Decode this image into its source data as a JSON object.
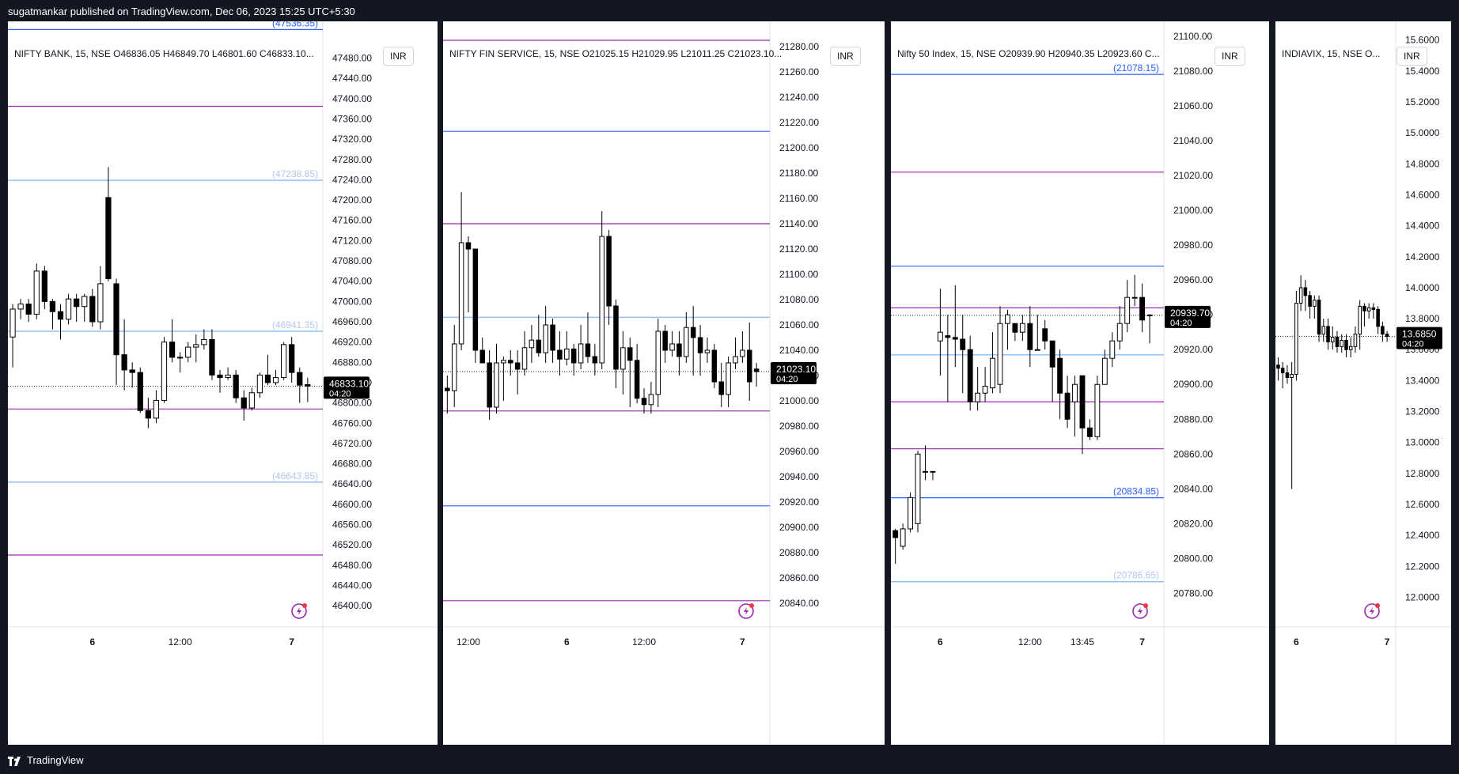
{
  "header": {
    "published": "sugatmankar published on TradingView.com, Dec 06, 2023 15:25 UTC+5:30"
  },
  "footer": {
    "brand": "TradingView"
  },
  "colors": {
    "blue_level": "#2962ff",
    "purple_level": "#9c27b0",
    "candle_up": "#ffffff",
    "candle_down": "#000000"
  },
  "chart_data": [
    {
      "type": "candlestick",
      "legend": "NIFTY BANK, 15, NSE  O46836.05  H46849.70  L46801.60  C46833.10...",
      "currency": "INR",
      "ylim": [
        46380,
        47540
      ],
      "yticks": [
        "46400.00",
        "46440.00",
        "46480.00",
        "46520.00",
        "46560.00",
        "46600.00",
        "46640.00",
        "46680.00",
        "46720.00",
        "46760.00",
        "46800.00",
        "46840.00",
        "46880.00",
        "46920.00",
        "46960.00",
        "47000.00",
        "47040.00",
        "47080.00",
        "47120.00",
        "47160.00",
        "47200.00",
        "47240.00",
        "47280.00",
        "47320.00",
        "47360.00",
        "47400.00",
        "47440.00",
        "47480.00"
      ],
      "xticks": [
        {
          "label": "6",
          "i": 10
        },
        {
          "label": "12:00",
          "i": 21
        },
        {
          "label": "7",
          "i": 35
        }
      ],
      "last_price": "46833.10",
      "countdown": "04:20",
      "levels": [
        {
          "price": 47536.35,
          "color": "blue",
          "label": "(47536.35)"
        },
        {
          "price": 47385,
          "color": "purple"
        },
        {
          "price": 47238.85,
          "color": "lightblue",
          "label": "(47238.85)"
        },
        {
          "price": 46941.35,
          "color": "lightblue",
          "label": "(46941.35)"
        },
        {
          "price": 46788,
          "color": "purple"
        },
        {
          "price": 46643.85,
          "color": "lightblue",
          "label": "(46643.85)"
        },
        {
          "price": 46500,
          "color": "purple"
        }
      ],
      "candles": [
        [
          46930,
          46985,
          46870,
          46995
        ],
        [
          46985,
          46995,
          46965,
          47005
        ],
        [
          46995,
          46975,
          46960,
          47005
        ],
        [
          46975,
          47060,
          46965,
          47075
        ],
        [
          47060,
          47000,
          46985,
          47070
        ],
        [
          47000,
          46980,
          46945,
          47005
        ],
        [
          46980,
          46965,
          46925,
          46995
        ],
        [
          46965,
          47005,
          46955,
          47015
        ],
        [
          47005,
          46990,
          46960,
          47015
        ],
        [
          46990,
          47010,
          46960,
          47015
        ],
        [
          47010,
          46960,
          46950,
          47025
        ],
        [
          46960,
          47035,
          46945,
          47070
        ],
        [
          47205,
          47045,
          47040,
          47265
        ],
        [
          47035,
          46895,
          46835,
          47045
        ],
        [
          46895,
          46865,
          46825,
          46965
        ],
        [
          46865,
          46860,
          46830,
          46880
        ],
        [
          46860,
          46785,
          46780,
          46870
        ],
        [
          46785,
          46770,
          46750,
          46810
        ],
        [
          46770,
          46805,
          46760,
          46825
        ],
        [
          46805,
          46920,
          46800,
          46930
        ],
        [
          46920,
          46890,
          46880,
          46965
        ],
        [
          46890,
          46890,
          46860,
          46900
        ],
        [
          46890,
          46910,
          46880,
          46920
        ],
        [
          46910,
          46915,
          46880,
          46935
        ],
        [
          46915,
          46925,
          46905,
          46945
        ],
        [
          46925,
          46855,
          46845,
          46945
        ],
        [
          46855,
          46850,
          46820,
          46865
        ],
        [
          46850,
          46855,
          46845,
          46870
        ],
        [
          46855,
          46810,
          46800,
          46865
        ],
        [
          46810,
          46790,
          46765,
          46825
        ],
        [
          46790,
          46820,
          46785,
          46830
        ],
        [
          46820,
          46855,
          46810,
          46860
        ],
        [
          46855,
          46840,
          46835,
          46895
        ],
        [
          46840,
          46850,
          46835,
          46865
        ],
        [
          46850,
          46915,
          46845,
          46920
        ],
        [
          46915,
          46860,
          46840,
          46930
        ],
        [
          46860,
          46835,
          46800,
          46870
        ],
        [
          46836.05,
          46833.1,
          46801.6,
          46849.7
        ]
      ]
    },
    {
      "type": "candlestick",
      "legend": "NIFTY FIN SERVICE, 15, NSE  O21025.15  H21029.95  L21011.25  C21023.10...",
      "currency": "INR",
      "ylim": [
        20830,
        21295
      ],
      "yticks": [
        "20840.00",
        "20860.00",
        "20880.00",
        "20900.00",
        "20920.00",
        "20940.00",
        "20960.00",
        "20980.00",
        "21000.00",
        "21020.00",
        "21040.00",
        "21060.00",
        "21080.00",
        "21100.00",
        "21120.00",
        "21140.00",
        "21160.00",
        "21180.00",
        "21200.00",
        "21220.00",
        "21240.00",
        "21260.00",
        "21280.00"
      ],
      "xticks": [
        {
          "label": "12:00",
          "i": 3
        },
        {
          "label": "6",
          "i": 17
        },
        {
          "label": "12:00",
          "i": 28
        },
        {
          "label": "7",
          "i": 42
        }
      ],
      "last_price": "21023.10",
      "countdown": "04:20",
      "levels": [
        {
          "price": 21285,
          "color": "purple"
        },
        {
          "price": 21213,
          "color": "blue"
        },
        {
          "price": 21140,
          "color": "purple"
        },
        {
          "price": 21066,
          "color": "lightblue"
        },
        {
          "price": 20992,
          "color": "purple"
        },
        {
          "price": 20917,
          "color": "blue"
        },
        {
          "price": 20842,
          "color": "purple"
        }
      ],
      "candles": [
        [
          21010,
          21008,
          20990,
          21020
        ],
        [
          21008,
          21045,
          20995,
          21060
        ],
        [
          21045,
          21125,
          21040,
          21165
        ],
        [
          21125,
          21120,
          21070,
          21130
        ],
        [
          21120,
          21040,
          21030,
          21120
        ],
        [
          21040,
          21030,
          21030,
          21050
        ],
        [
          21030,
          20995,
          20985,
          21040
        ],
        [
          20995,
          21030,
          20990,
          21045
        ],
        [
          21030,
          21032,
          21000,
          21035
        ],
        [
          21032,
          21030,
          21020,
          21040
        ],
        [
          21030,
          21025,
          21005,
          21040
        ],
        [
          21025,
          21042,
          21020,
          21055
        ],
        [
          21042,
          21048,
          21030,
          21060
        ],
        [
          21048,
          21038,
          21035,
          21068
        ],
        [
          21038,
          21060,
          21030,
          21075
        ],
        [
          21060,
          21040,
          21030,
          21065
        ],
        [
          21040,
          21033,
          21020,
          21055
        ],
        [
          21033,
          21041,
          21028,
          21055
        ],
        [
          21041,
          21030,
          21020,
          21045
        ],
        [
          21030,
          21045,
          21025,
          21060
        ],
        [
          21045,
          21035,
          21030,
          21070
        ],
        [
          21035,
          21030,
          21020,
          21045
        ],
        [
          21030,
          21130,
          21025,
          21150
        ],
        [
          21130,
          21075,
          21060,
          21135
        ],
        [
          21075,
          21025,
          21010,
          21080
        ],
        [
          21025,
          21042,
          21005,
          21055
        ],
        [
          21042,
          21032,
          20995,
          21050
        ],
        [
          21032,
          21002,
          20998,
          21045
        ],
        [
          21002,
          20997,
          20990,
          21010
        ],
        [
          20997,
          21005,
          20990,
          21015
        ],
        [
          21005,
          21055,
          20995,
          21065
        ],
        [
          21055,
          21040,
          21030,
          21060
        ],
        [
          21040,
          21045,
          21035,
          21055
        ],
        [
          21045,
          21035,
          21020,
          21055
        ],
        [
          21035,
          21058,
          21030,
          21070
        ],
        [
          21058,
          21050,
          21020,
          21075
        ],
        [
          21050,
          21038,
          21020,
          21060
        ],
        [
          21038,
          21040,
          21030,
          21050
        ],
        [
          21040,
          21015,
          21010,
          21045
        ],
        [
          21015,
          21005,
          20995,
          21030
        ],
        [
          21005,
          21030,
          20995,
          21035
        ],
        [
          21030,
          21035,
          21025,
          21050
        ],
        [
          21035,
          21040,
          21030,
          21055
        ],
        [
          21040,
          21015,
          21000,
          21062
        ],
        [
          21025.15,
          21023.1,
          21011.25,
          21029.95
        ]
      ]
    },
    {
      "type": "candlestick",
      "legend": "Nifty 50 Index, 15, NSE  O20939.90  H20940.35  L20923.60  C...",
      "currency": "INR",
      "ylim": [
        20767,
        21105
      ],
      "yticks": [
        "20780.00",
        "20800.00",
        "20820.00",
        "20840.00",
        "20860.00",
        "20880.00",
        "20900.00",
        "20920.00",
        "20940.00",
        "20960.00",
        "20980.00",
        "21000.00",
        "21020.00",
        "21040.00",
        "21060.00",
        "21080.00",
        "21100.00"
      ],
      "xticks": [
        {
          "label": "6",
          "i": 6
        },
        {
          "label": "12:00",
          "i": 18
        },
        {
          "label": "13:45",
          "i": 25
        },
        {
          "label": "7",
          "i": 33
        }
      ],
      "last_price": "20939.70",
      "countdown": "04:20",
      "levels": [
        {
          "price": 21078.15,
          "color": "blue",
          "label": "(21078.15)"
        },
        {
          "price": 21022,
          "color": "purple"
        },
        {
          "price": 20968,
          "color": "blue"
        },
        {
          "price": 20944,
          "color": "purple"
        },
        {
          "price": 20917,
          "color": "lightblue"
        },
        {
          "price": 20890,
          "color": "purple"
        },
        {
          "price": 20863,
          "color": "purple"
        },
        {
          "price": 20834.85,
          "color": "blue",
          "label": "(20834.85)"
        },
        {
          "price": 20786.65,
          "color": "lightblue",
          "label": "(20786.65)"
        }
      ],
      "candles": [
        [
          20816,
          20812,
          20797,
          20817
        ],
        [
          20807,
          20817,
          20805,
          20820
        ],
        [
          20817,
          20835,
          20815,
          20838
        ],
        [
          20820,
          20860,
          20815,
          20862
        ],
        [
          20850,
          20850,
          20845,
          20865
        ],
        [
          20850,
          20850,
          20845,
          20850
        ],
        [
          20925,
          20930,
          20905,
          20955
        ],
        [
          20928,
          20927,
          20890,
          20940
        ],
        [
          20927,
          20926,
          20910,
          20957
        ],
        [
          20926,
          20920,
          20895,
          20940
        ],
        [
          20920,
          20890,
          20885,
          20928
        ],
        [
          20890,
          20895,
          20885,
          20910
        ],
        [
          20895,
          20899,
          20890,
          20910
        ],
        [
          20898,
          20915,
          20895,
          20930
        ],
        [
          20900,
          20935,
          20895,
          20945
        ],
        [
          20935,
          20940,
          20920,
          20943
        ],
        [
          20935,
          20930,
          20925,
          20935
        ],
        [
          20930,
          20935,
          20925,
          20940
        ],
        [
          20935,
          20920,
          20910,
          20945
        ],
        [
          20920,
          20920,
          20920,
          20940
        ],
        [
          20932,
          20925,
          20920,
          20937
        ],
        [
          20925,
          20910,
          20890,
          20925
        ],
        [
          20915,
          20895,
          20880,
          20920
        ],
        [
          20895,
          20880,
          20875,
          20905
        ],
        [
          20890,
          20900,
          20870,
          20905
        ],
        [
          20905,
          20875,
          20860,
          20905
        ],
        [
          20875,
          20870,
          20868,
          20880
        ],
        [
          20870,
          20900,
          20868,
          20905
        ],
        [
          20900,
          20915,
          20900,
          20920
        ],
        [
          20915,
          20925,
          20910,
          20930
        ],
        [
          20925,
          20935,
          20920,
          20945
        ],
        [
          20935,
          20950,
          20930,
          20960
        ],
        [
          20950,
          20950,
          20945,
          20963
        ],
        [
          20950,
          20937,
          20930,
          20958
        ],
        [
          20939.9,
          20939.7,
          20923.6,
          20940.35
        ]
      ]
    },
    {
      "type": "candlestick",
      "legend": "INDIAVIX, 15, NSE  O...",
      "currency": "INR",
      "ylim": [
        11.88,
        15.68
      ],
      "yticks": [
        "12.0000",
        "12.2000",
        "12.4000",
        "12.6000",
        "12.8000",
        "13.0000",
        "13.2000",
        "13.4000",
        "13.6000",
        "13.8000",
        "14.0000",
        "14.2000",
        "14.4000",
        "14.6000",
        "14.8000",
        "15.0000",
        "15.2000",
        "15.4000",
        "15.6000"
      ],
      "xticks": [
        {
          "label": "6",
          "i": 4
        },
        {
          "label": "7",
          "i": 24
        }
      ],
      "last_price": "13.6850",
      "countdown": "04:20",
      "levels": [],
      "candles": [
        [
          13.5,
          13.48,
          13.4,
          13.55
        ],
        [
          13.48,
          13.45,
          13.35,
          13.52
        ],
        [
          13.45,
          13.42,
          13.38,
          13.5
        ],
        [
          13.42,
          13.44,
          12.7,
          13.52
        ],
        [
          13.44,
          13.9,
          13.4,
          13.98
        ],
        [
          13.9,
          14.0,
          13.85,
          14.08
        ],
        [
          14.0,
          13.95,
          13.85,
          14.05
        ],
        [
          13.95,
          13.88,
          13.8,
          13.98
        ],
        [
          13.88,
          13.92,
          13.8,
          13.95
        ],
        [
          13.92,
          13.7,
          13.65,
          13.95
        ],
        [
          13.7,
          13.75,
          13.65,
          13.8
        ],
        [
          13.75,
          13.65,
          13.6,
          13.8
        ],
        [
          13.65,
          13.68,
          13.6,
          13.75
        ],
        [
          13.68,
          13.62,
          13.58,
          13.72
        ],
        [
          13.62,
          13.66,
          13.58,
          13.7
        ],
        [
          13.66,
          13.6,
          13.55,
          13.7
        ],
        [
          13.6,
          13.62,
          13.55,
          13.68
        ],
        [
          13.62,
          13.7,
          13.58,
          13.75
        ],
        [
          13.7,
          13.88,
          13.6,
          13.92
        ],
        [
          13.88,
          13.85,
          13.75,
          13.9
        ],
        [
          13.85,
          13.87,
          13.8,
          13.9
        ],
        [
          13.87,
          13.86,
          13.8,
          13.9
        ],
        [
          13.86,
          13.75,
          13.7,
          13.88
        ],
        [
          13.75,
          13.7,
          13.65,
          13.78
        ],
        [
          13.7,
          13.685,
          13.65,
          13.72
        ]
      ]
    }
  ]
}
